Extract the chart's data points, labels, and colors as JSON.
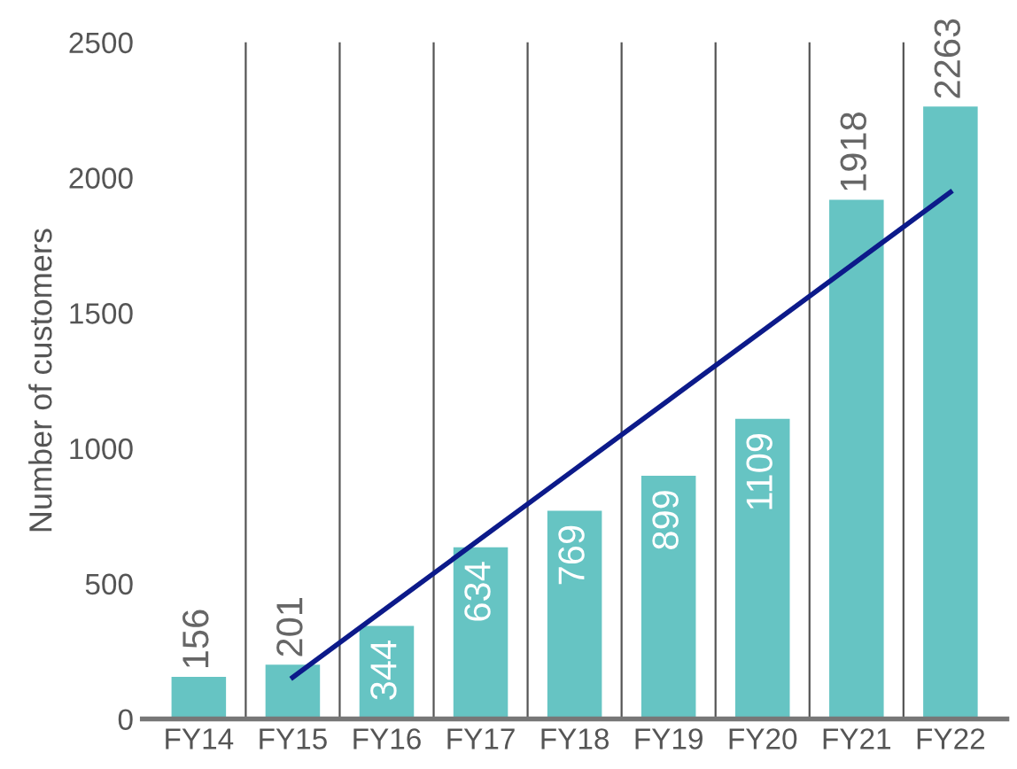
{
  "chart_data": {
    "type": "bar",
    "ylabel": "Number of customers",
    "categories": [
      "FY14",
      "FY15",
      "FY16",
      "FY17",
      "FY18",
      "FY19",
      "FY20",
      "FY21",
      "FY22"
    ],
    "series": [
      {
        "color": "#66c4c3",
        "values": [
          156,
          201,
          344,
          634,
          769,
          899,
          1109,
          1918,
          2263
        ],
        "value_labels": [
          "156",
          "201",
          "344",
          "634",
          "769",
          "899",
          "1109",
          "1918",
          "2263"
        ]
      },
      {
        "type": "line",
        "color": "#0c1a8a",
        "values": [
          null,
          154,
          410,
          666,
          922,
          1178,
          1434,
          1690,
          1946
        ]
      }
    ],
    "ylim": [
      0,
      2500
    ],
    "yticks": [
      0,
      500,
      1000,
      1500,
      2000,
      2500
    ],
    "grid": "x"
  }
}
